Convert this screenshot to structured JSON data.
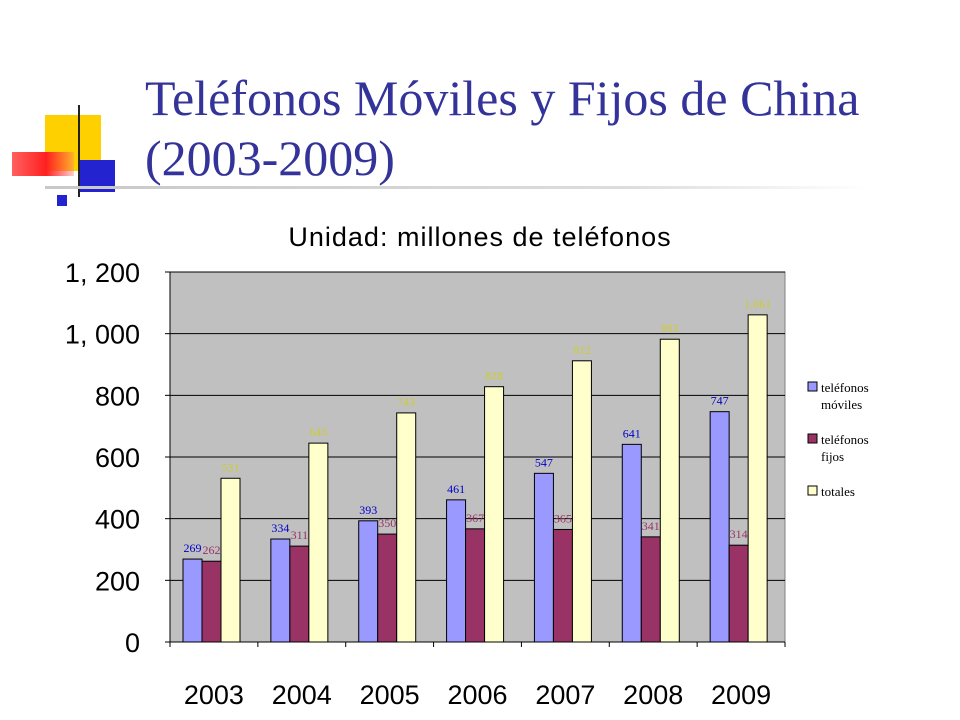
{
  "slide": {
    "title_line1": "Teléfonos Móviles y Fijos de China",
    "title_line2": "(2003-2009)"
  },
  "colors": {
    "title": "#333399",
    "moviles": "#9999ff",
    "fijos": "#993366",
    "totales": "#ffffcc",
    "plot_bg": "#c0c0c0"
  },
  "chart_data": {
    "type": "bar",
    "subtitle": "Unidad:  millones de teléfonos",
    "categories": [
      "2003",
      "2004",
      "2005",
      "2006",
      "2007",
      "2008",
      "2009"
    ],
    "series": [
      {
        "name": "teléfonos móviles",
        "values": [
          269,
          334,
          393,
          461,
          547,
          641,
          747
        ],
        "labels": [
          "269",
          "334",
          "393",
          "461",
          "547",
          "641",
          "747"
        ]
      },
      {
        "name": "teléfonos fijos",
        "values": [
          262,
          311,
          350,
          367,
          365,
          341,
          314
        ],
        "labels": [
          "262",
          "311",
          "350",
          "367",
          "365",
          "341",
          "314"
        ]
      },
      {
        "name": "totales",
        "values": [
          531,
          645,
          743,
          828,
          912,
          982,
          1061
        ],
        "labels": [
          "531",
          "645",
          "743",
          "828",
          "912",
          "982",
          "1,061"
        ]
      }
    ],
    "ylim": [
      0,
      1200
    ],
    "yticks": [
      0,
      200,
      400,
      600,
      800,
      1000,
      1200
    ],
    "ytick_labels": [
      "0",
      "200",
      "400",
      "600",
      "800",
      "1, 000",
      "1, 200"
    ],
    "legend": [
      {
        "line1": "teléfonos",
        "line2": "móviles"
      },
      {
        "line1": "teléfonos",
        "line2": "fijos"
      },
      {
        "line1": "totales",
        "line2": ""
      }
    ],
    "legend_position": "right",
    "grid": true
  }
}
